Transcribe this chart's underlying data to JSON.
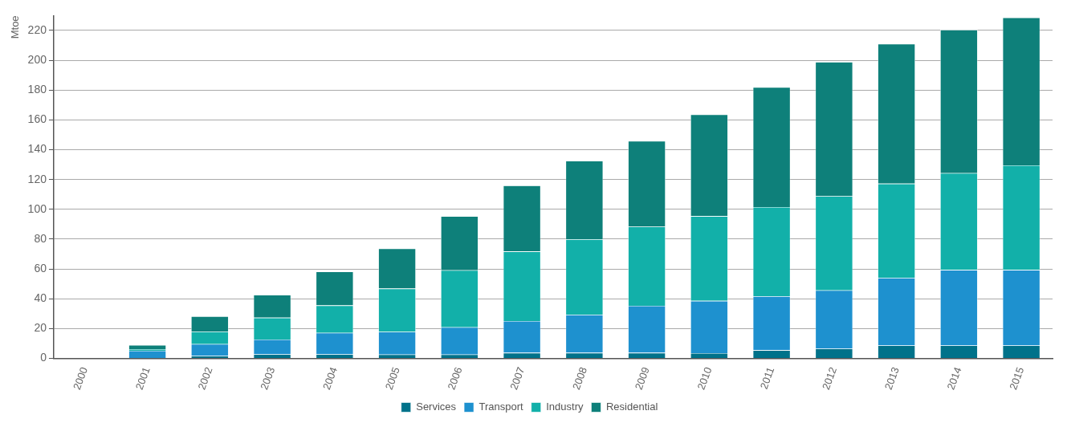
{
  "chart_data": {
    "type": "bar",
    "stacked": true,
    "ylabel": "Mtoe",
    "categories": [
      "2000",
      "2001",
      "2002",
      "2003",
      "2004",
      "2005",
      "2006",
      "2007",
      "2008",
      "2009",
      "2010",
      "2011",
      "2012",
      "2013",
      "2014",
      "2015"
    ],
    "series": [
      {
        "name": "Services",
        "color": "#00728a",
        "values": [
          0,
          null,
          1.6,
          2.7,
          2.7,
          2.6,
          2.6,
          3.7,
          3.7,
          3.7,
          3.5,
          5.5,
          6.5,
          8.6,
          8.6,
          8.6
        ]
      },
      {
        "name": "Transport",
        "color": "#1e91cf",
        "values": [
          0,
          5.1,
          8,
          10,
          14.4,
          15.2,
          18.3,
          21.4,
          25.6,
          31.6,
          35.1,
          36.2,
          39.2,
          45.4,
          50.7,
          50.7
        ]
      },
      {
        "name": "Industry",
        "color": "#12b0a9",
        "values": [
          0,
          1.1,
          8.4,
          14.6,
          18.4,
          29,
          38.2,
          46.6,
          50.6,
          53,
          56.8,
          59.8,
          63.1,
          63.2,
          65,
          70.2
        ]
      },
      {
        "name": "Residential",
        "color": "#0e807a",
        "values": [
          0,
          2.8,
          10.2,
          15.3,
          22.7,
          26.9,
          36.3,
          44.2,
          52.6,
          57.6,
          68.2,
          80.5,
          90.1,
          93.8,
          96.2,
          99.2
        ]
      }
    ],
    "ylim": [
      0,
      230
    ],
    "yticks": [
      0,
      20,
      40,
      60,
      80,
      100,
      120,
      140,
      160,
      180,
      200,
      220
    ],
    "grid": "y",
    "legend": "bottom"
  }
}
